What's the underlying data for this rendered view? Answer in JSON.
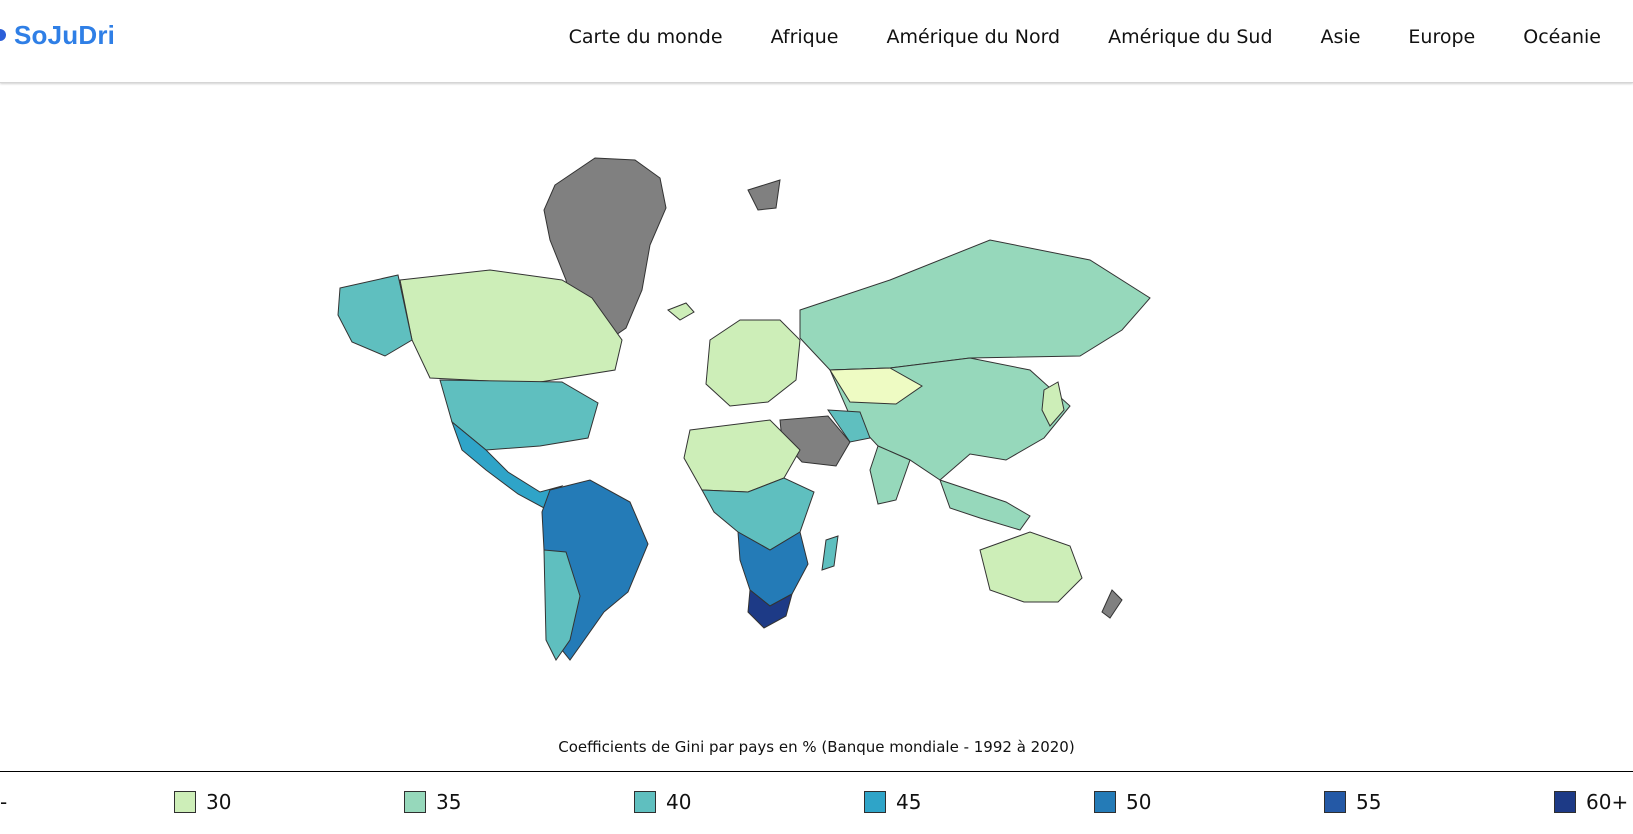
{
  "brand": {
    "name": "SoJuDri",
    "accent": "#2f7fe6"
  },
  "nav": [
    {
      "label": "Carte du monde"
    },
    {
      "label": "Afrique"
    },
    {
      "label": "Amérique du Nord"
    },
    {
      "label": "Amérique du Sud"
    },
    {
      "label": "Asie"
    },
    {
      "label": "Europe"
    },
    {
      "label": "Océanie"
    }
  ],
  "map": {
    "caption": "Coefficients de Gini par pays en % (Banque mondiale - 1992 à 2020)",
    "legend_leading": "-",
    "legend": [
      {
        "label": "30",
        "color": "#cdeeb8"
      },
      {
        "label": "35",
        "color": "#96d8bb"
      },
      {
        "label": "40",
        "color": "#5fbfbf"
      },
      {
        "label": "45",
        "color": "#2fa4c8"
      },
      {
        "label": "50",
        "color": "#247bb7"
      },
      {
        "label": "55",
        "color": "#2459a6"
      },
      {
        "label": "60+",
        "color": "#1d3a86"
      }
    ],
    "no_data_color": "#808080"
  }
}
